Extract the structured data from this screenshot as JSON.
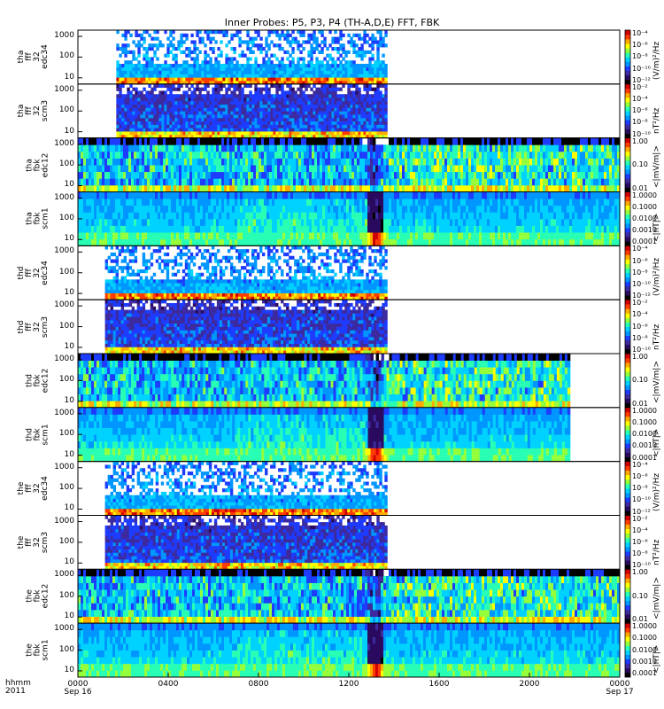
{
  "chart_data": {
    "type": "heatmap",
    "title": "Inner Probes: P5, P3, P4 (TH-A,D,E) FFT, FBK",
    "xlabel_line1": "hhmm",
    "xlabel_line2": "2011",
    "x_ticks": [
      {
        "t": 0,
        "label": "0000",
        "sub": "Sep 16"
      },
      {
        "t": 4,
        "label": "0400",
        "sub": ""
      },
      {
        "t": 8,
        "label": "0800",
        "sub": ""
      },
      {
        "t": 12,
        "label": "1200",
        "sub": ""
      },
      {
        "t": 16,
        "label": "1600",
        "sub": ""
      },
      {
        "t": 20,
        "label": "2000",
        "sub": ""
      },
      {
        "t": 24,
        "label": "0000",
        "sub": "Sep 17"
      }
    ],
    "xlim_hours": [
      0,
      24
    ],
    "y_scale": "log",
    "ylim_hz": [
      5,
      2000
    ],
    "y_ticks": [
      "10",
      "100",
      "1000"
    ],
    "panels": [
      {
        "probe": "tha",
        "ylabel": [
          "tha",
          "fff",
          "32",
          "edc34"
        ],
        "kind": "fff_e",
        "t_start": 1.7,
        "t_end": 13.7,
        "cb_ticks": [
          "10⁻⁴",
          "10⁻⁶",
          "10⁻⁸",
          "10⁻¹⁰",
          "10⁻¹²"
        ],
        "cb_unit": "(V/m)²/Hz"
      },
      {
        "probe": "tha",
        "ylabel": [
          "tha",
          "fff",
          "32",
          "scm3"
        ],
        "kind": "fff_b",
        "t_start": 1.7,
        "t_end": 13.7,
        "cb_ticks": [
          "10⁻²",
          "10⁻⁴",
          "10⁻⁶",
          "10⁻⁸",
          "10⁻¹⁰"
        ],
        "cb_unit": "nT²/Hz"
      },
      {
        "probe": "tha",
        "ylabel": [
          "tha",
          "fbk",
          "edc12"
        ],
        "kind": "fbk_e",
        "t_start": 0.0,
        "t_end": 24.0,
        "cb_ticks": [
          "1.00",
          "0.10",
          "0.01"
        ],
        "cb_unit": "<|mV/m|>"
      },
      {
        "probe": "tha",
        "ylabel": [
          "tha",
          "fbk",
          "scm1"
        ],
        "kind": "fbk_b",
        "t_start": 0.0,
        "t_end": 24.0,
        "cb_ticks": [
          "1.0000",
          "0.1000",
          "0.0100",
          "0.0010",
          "0.0001"
        ],
        "cb_unit": "<|nT|>"
      },
      {
        "probe": "thd",
        "ylabel": [
          "thd",
          "fff",
          "32",
          "edc34"
        ],
        "kind": "fff_e",
        "t_start": 1.2,
        "t_end": 13.7,
        "cb_ticks": [
          "10⁻⁴",
          "10⁻⁶",
          "10⁻⁸",
          "10⁻¹⁰",
          "10⁻¹²"
        ],
        "cb_unit": "(V/m)²/Hz"
      },
      {
        "probe": "thd",
        "ylabel": [
          "thd",
          "fff",
          "32",
          "scm3"
        ],
        "kind": "fff_b",
        "t_start": 1.2,
        "t_end": 13.7,
        "cb_ticks": [
          "10⁻²",
          "10⁻⁴",
          "10⁻⁶",
          "10⁻⁸",
          "10⁻¹⁰"
        ],
        "cb_unit": "nT²/Hz"
      },
      {
        "probe": "thd",
        "ylabel": [
          "thd",
          "fbk",
          "edc12"
        ],
        "kind": "fbk_e",
        "t_start": 0.0,
        "t_end": 21.8,
        "cb_ticks": [
          "1.00",
          "0.10",
          "0.01"
        ],
        "cb_unit": "<|mV/m|>"
      },
      {
        "probe": "thd",
        "ylabel": [
          "thd",
          "fbk",
          "scm1"
        ],
        "kind": "fbk_b",
        "t_start": 0.0,
        "t_end": 21.8,
        "cb_ticks": [
          "1.0000",
          "0.1000",
          "0.0100",
          "0.0010",
          "0.0001"
        ],
        "cb_unit": "<|nT|>"
      },
      {
        "probe": "the",
        "ylabel": [
          "the",
          "fff",
          "32",
          "edc34"
        ],
        "kind": "fff_e",
        "t_start": 1.2,
        "t_end": 13.7,
        "cb_ticks": [
          "10⁻⁴",
          "10⁻⁶",
          "10⁻⁸",
          "10⁻¹⁰",
          "10⁻¹²"
        ],
        "cb_unit": "(V/m)²/Hz"
      },
      {
        "probe": "the",
        "ylabel": [
          "the",
          "fff",
          "32",
          "scm3"
        ],
        "kind": "fff_b",
        "t_start": 1.2,
        "t_end": 13.7,
        "cb_ticks": [
          "10⁻²",
          "10⁻⁴",
          "10⁻⁶",
          "10⁻⁸",
          "10⁻¹⁰"
        ],
        "cb_unit": "nT²/Hz"
      },
      {
        "probe": "the",
        "ylabel": [
          "the",
          "fbk",
          "edc12"
        ],
        "kind": "fbk_e",
        "t_start": 0.0,
        "t_end": 24.0,
        "cb_ticks": [
          "1.00",
          "0.10",
          "0.01"
        ],
        "cb_unit": "<|mV/m|>"
      },
      {
        "probe": "the",
        "ylabel": [
          "the",
          "fbk",
          "scm1"
        ],
        "kind": "fbk_b",
        "t_start": 0.0,
        "t_end": 24.0,
        "cb_ticks": [
          "1.0000",
          "0.1000",
          "0.0100",
          "0.0010",
          "0.0001"
        ],
        "cb_unit": "<|nT|>"
      }
    ],
    "colormap": [
      "#000000",
      "#2a0a5e",
      "#3c2a9e",
      "#1e3cff",
      "#0096ff",
      "#00d2ff",
      "#28ffb4",
      "#96ff3c",
      "#ffff00",
      "#ffaa00",
      "#ff3c00",
      "#d20000"
    ]
  }
}
